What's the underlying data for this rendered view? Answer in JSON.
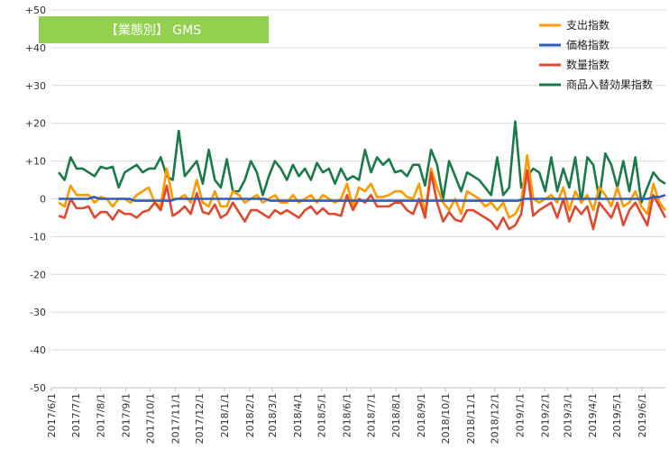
{
  "title": "【業態別】 GMS",
  "colors": {
    "title_bg": "#92D050",
    "grid": "#d9d9d9",
    "axis": "#bfbfbf"
  },
  "chart_data": {
    "type": "line",
    "title": "【業態別】 GMS",
    "ylim": [
      -50,
      50
    ],
    "y_ticks": [
      "+50",
      "+40",
      "+30",
      "+20",
      "+10",
      "0",
      "-10",
      "-20",
      "-30",
      "-40",
      "-50"
    ],
    "y_tick_values": [
      50,
      40,
      30,
      20,
      10,
      0,
      -10,
      -20,
      -30,
      -40,
      -50
    ],
    "x_labels": [
      "2017/6/1",
      "2017/7/1",
      "2017/8/1",
      "2017/9/1",
      "2017/10/1",
      "2017/11/1",
      "2017/12/1",
      "2018/1/1",
      "2018/2/1",
      "2018/3/1",
      "2018/4/1",
      "2018/5/1",
      "2018/6/1",
      "2018/7/1",
      "2018/8/1",
      "2018/9/1",
      "2018/10/1",
      "2018/11/1",
      "2018/12/1",
      "2019/1/1",
      "2019/2/1",
      "2019/3/1",
      "2019/4/1",
      "2019/5/1",
      "2019/6/1"
    ],
    "x_range": [
      "2017/6/1",
      "2019/6/30"
    ],
    "grid": "horizontal",
    "legend_position": "top-right",
    "series": [
      {
        "name": "支出指数",
        "color": "#FF9900",
        "values": [
          -1,
          -2,
          3.5,
          1,
          1,
          1,
          -1,
          0.5,
          0,
          -2,
          0,
          0,
          -1,
          1,
          2,
          3,
          -1,
          -2,
          8,
          0,
          0,
          1,
          -1,
          5,
          -1,
          -2,
          2,
          -2,
          -2,
          2,
          1,
          -1,
          0,
          1,
          -1,
          0,
          1,
          -1,
          -1,
          1,
          -1,
          0,
          1,
          -1,
          1,
          0,
          -1,
          0,
          4,
          -2,
          3,
          2,
          4,
          0.5,
          0.5,
          1,
          2,
          2,
          0.5,
          0,
          4,
          -4,
          8,
          3,
          -1,
          -3,
          0,
          -4,
          2,
          1,
          0,
          -2,
          -1,
          -3,
          -1,
          -5,
          -4,
          -1,
          11.5,
          0,
          -1,
          0,
          1,
          -1,
          3,
          -3,
          2,
          -1,
          1,
          -3,
          3,
          1,
          -2,
          3,
          -2,
          -1,
          2,
          -2,
          -4,
          4,
          -1,
          -3
        ]
      },
      {
        "name": "価格指数",
        "color": "#2E5EB5",
        "values": [
          0,
          0,
          0,
          0,
          0,
          0,
          0.5,
          0,
          0,
          0,
          0,
          0,
          0,
          -0.5,
          -0.5,
          -0.5,
          -0.5,
          -0.5,
          -0.5,
          -0.5,
          0,
          0,
          0,
          0,
          0,
          0,
          0,
          0,
          0,
          0,
          0,
          0,
          0,
          0,
          0,
          0,
          -0.5,
          -0.5,
          -0.5,
          -0.5,
          -0.5,
          -0.5,
          -0.5,
          -0.5,
          -0.5,
          -0.5,
          -0.5,
          -0.5,
          -0.5,
          -0.5,
          -0.5,
          -0.5,
          -0.5,
          -0.5,
          -0.5,
          -0.5,
          -0.5,
          -0.5,
          -0.5,
          -0.5,
          -0.5,
          -0.5,
          -0.5,
          -0.5,
          -0.5,
          -0.5,
          -0.5,
          -0.5,
          -0.5,
          -0.5,
          -0.5,
          -0.5,
          -0.5,
          -0.5,
          -0.5,
          -0.5,
          -0.5,
          -0.5,
          -0.5,
          0,
          0,
          0,
          0,
          0,
          0,
          0,
          0,
          0,
          0,
          0,
          0,
          0,
          0,
          0,
          0,
          0,
          0,
          0,
          0,
          0,
          0,
          0.5,
          0.5,
          1
        ]
      },
      {
        "name": "数量指数",
        "color": "#E04830",
        "values": [
          -4.5,
          -5,
          0,
          -2.5,
          -2.5,
          -2,
          -5,
          -3.5,
          -3.5,
          -5.5,
          -3,
          -4,
          -4,
          -5,
          -3.5,
          -3,
          -1,
          -3,
          3.5,
          -4.5,
          -3.5,
          -2,
          -4,
          1.5,
          -3.5,
          -4,
          -1.5,
          -5,
          -4,
          -1,
          -3.5,
          -6,
          -3,
          -3,
          -4,
          -5,
          -3,
          -4,
          -3,
          -4,
          -5,
          -3,
          -2,
          -4,
          -2.5,
          -4,
          -4,
          -4.5,
          1,
          -3,
          0,
          -1,
          1,
          -2,
          -2,
          -2,
          -1,
          -1,
          -3,
          -4,
          0,
          -5,
          7,
          -1,
          -6,
          -3.5,
          -5.5,
          -6,
          -3,
          -3,
          -4,
          -5,
          -6,
          -8,
          -5,
          -8,
          -7,
          -4,
          7.5,
          -4.5,
          -3,
          -2,
          -1,
          -5,
          0,
          -6,
          -2,
          -4,
          -2,
          -8,
          -1,
          -3,
          -5,
          -1,
          -7,
          -3,
          -1,
          -4,
          -7,
          1,
          -2,
          -5
        ]
      },
      {
        "name": "商品入替効果指数",
        "color": "#1A7A4A",
        "values": [
          7,
          5,
          11,
          8,
          8,
          7,
          6,
          8.5,
          8,
          8.5,
          3,
          7,
          8,
          9,
          7,
          8,
          8,
          11,
          6,
          5,
          18,
          6,
          8,
          10,
          4,
          13,
          5,
          3,
          10.5,
          2,
          2,
          5,
          10,
          7,
          1,
          6,
          10,
          8,
          5,
          9,
          6,
          8,
          5,
          9.5,
          7,
          8,
          4,
          8,
          5,
          6,
          5,
          13,
          7,
          11,
          9,
          10.5,
          7,
          7.5,
          6,
          9,
          9,
          3.5,
          13,
          9,
          0,
          10,
          6,
          2,
          7,
          6,
          5,
          3,
          1,
          11,
          1,
          3,
          20.5,
          3,
          6,
          8,
          7,
          2,
          11,
          2,
          8,
          3,
          11,
          -1,
          11,
          9,
          0,
          12,
          9,
          3,
          10,
          2,
          11,
          -1,
          3,
          7,
          5,
          4
        ]
      }
    ]
  }
}
